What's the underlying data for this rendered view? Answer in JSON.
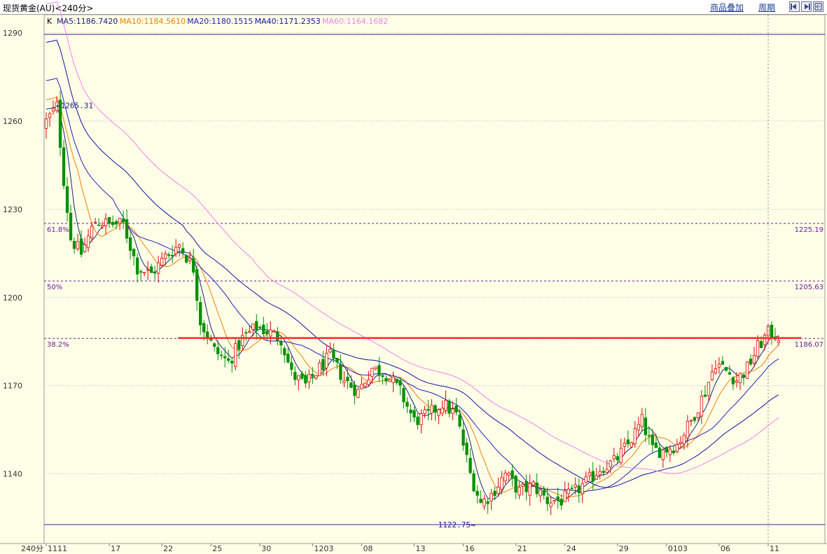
{
  "header": {
    "title": "现货黄金(AU)<240分>",
    "overlay_button": "商品叠加",
    "period_button": "周期",
    "nav_icons": [
      "zoom-in-icon",
      "zoom-out-icon",
      "fullscreen-icon"
    ]
  },
  "colors": {
    "background": "#ffffe8",
    "grid": "#b9b9b9",
    "candle_up": "#e00000",
    "candle_down": "#009000",
    "fib_line": "#6a1b9a",
    "resistance_line": "#ff2a2a",
    "price_bound_line": "#3b1fb0"
  },
  "chart_data": {
    "type": "candlestick",
    "symbol": "现货黄金(AU)",
    "period": "240分",
    "indicator_prefix": "K",
    "indicators": [
      {
        "label": "MA5:1186.7420",
        "color": "#1a237e"
      },
      {
        "label": "MA10:1184.5610",
        "color": "#f08000"
      },
      {
        "label": "MA20:1180.1515",
        "color": "#2020c0"
      },
      {
        "label": "MA40:1171.2353",
        "color": "#1010a0"
      },
      {
        "label": "MA60:1164.1682",
        "color": "#ee82ee"
      }
    ],
    "ylim": [
      1122.75,
      1290
    ],
    "yticks": [
      1290,
      1260,
      1230,
      1200,
      1170,
      1140
    ],
    "xlabel": "240分",
    "xticks": [
      {
        "label": "1111",
        "index": 0
      },
      {
        "label": "17",
        "index": 18
      },
      {
        "label": "22",
        "index": 33
      },
      {
        "label": "25",
        "index": 47
      },
      {
        "label": "30",
        "index": 61
      },
      {
        "label": "1203",
        "index": 76
      },
      {
        "label": "08",
        "index": 90
      },
      {
        "label": "13",
        "index": 105
      },
      {
        "label": "16",
        "index": 119
      },
      {
        "label": "21",
        "index": 134
      },
      {
        "label": "24",
        "index": 148
      },
      {
        "label": "29",
        "index": 163
      },
      {
        "label": "0103",
        "index": 177
      },
      {
        "label": "06",
        "index": 192
      },
      {
        "label": "11",
        "index": 206
      }
    ],
    "candle_count": 210,
    "anchors": [
      [
        0,
        1260
      ],
      [
        3,
        1265
      ],
      [
        5,
        1240
      ],
      [
        7,
        1220
      ],
      [
        10,
        1215
      ],
      [
        14,
        1226
      ],
      [
        18,
        1225
      ],
      [
        22,
        1225
      ],
      [
        26,
        1210
      ],
      [
        30,
        1208
      ],
      [
        34,
        1214
      ],
      [
        38,
        1218
      ],
      [
        42,
        1210
      ],
      [
        44,
        1192
      ],
      [
        48,
        1182
      ],
      [
        52,
        1178
      ],
      [
        56,
        1186
      ],
      [
        60,
        1190
      ],
      [
        64,
        1188
      ],
      [
        67,
        1186
      ],
      [
        70,
        1174
      ],
      [
        74,
        1170
      ],
      [
        78,
        1176
      ],
      [
        81,
        1180
      ],
      [
        85,
        1172
      ],
      [
        89,
        1168
      ],
      [
        93,
        1176
      ],
      [
        97,
        1174
      ],
      [
        101,
        1168
      ],
      [
        105,
        1158
      ],
      [
        109,
        1160
      ],
      [
        113,
        1164
      ],
      [
        117,
        1160
      ],
      [
        121,
        1140
      ],
      [
        124,
        1130
      ],
      [
        127,
        1133
      ],
      [
        131,
        1140
      ],
      [
        135,
        1134
      ],
      [
        139,
        1136
      ],
      [
        143,
        1131
      ],
      [
        147,
        1131
      ],
      [
        151,
        1134
      ],
      [
        155,
        1138
      ],
      [
        158,
        1142
      ],
      [
        162,
        1144
      ],
      [
        166,
        1150
      ],
      [
        170,
        1158
      ],
      [
        173,
        1148
      ],
      [
        176,
        1148
      ],
      [
        180,
        1150
      ],
      [
        184,
        1158
      ],
      [
        188,
        1168
      ],
      [
        191,
        1178
      ],
      [
        194,
        1175
      ],
      [
        197,
        1172
      ],
      [
        200,
        1176
      ],
      [
        203,
        1183
      ],
      [
        206,
        1188
      ],
      [
        209,
        1187
      ]
    ],
    "ma_labels": [
      "MA5",
      "MA10",
      "MA20",
      "MA40",
      "MA60"
    ],
    "extremes": {
      "high": "1265.31",
      "low": "1122.75"
    },
    "horizontal_lines": [
      {
        "price": 1289.5,
        "style": "solid",
        "color": "#3b1fb0"
      },
      {
        "price": 1225.19,
        "style": "dashed",
        "color": "#6a1b9a",
        "left_label": "61.8%",
        "right_label": "1225.19"
      },
      {
        "price": 1205.63,
        "style": "dashed",
        "color": "#6a1b9a",
        "left_label": "50%",
        "right_label": "1205.63"
      },
      {
        "price": 1186.07,
        "style": "dashed",
        "color": "#6a1b9a",
        "left_label": "38.2%",
        "right_label": "1186.07"
      },
      {
        "price": 1122.75,
        "style": "solid",
        "color": "#3b1fb0"
      }
    ],
    "resistance_line": {
      "price": 1186.2,
      "from_index": 40,
      "to_index": 210,
      "color": "#ff2a2a"
    },
    "cursor_index": 206,
    "grid": true
  }
}
